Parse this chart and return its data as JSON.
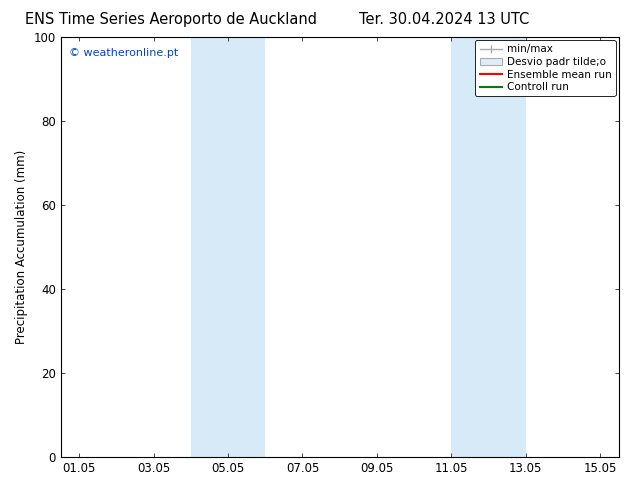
{
  "title": "ENS Time Series Aeroporto de Auckland",
  "title_right": "Ter. 30.04.2024 13 UTC",
  "ylabel": "Precipitation Accumulation (mm)",
  "watermark": "© weatheronline.pt",
  "watermark_color": "#0044cc",
  "ylim": [
    0,
    100
  ],
  "yticks": [
    0,
    20,
    40,
    60,
    80,
    100
  ],
  "xlim": [
    0.5,
    15.5
  ],
  "x_tick_labels": [
    "01.05",
    "03.05",
    "05.05",
    "07.05",
    "09.05",
    "11.05",
    "13.05",
    "15.05"
  ],
  "x_tick_positions": [
    1,
    3,
    5,
    7,
    9,
    11,
    13,
    15
  ],
  "shaded_bands": [
    {
      "x_start": 4.0,
      "x_end": 6.0,
      "color": "#d6eaf8"
    },
    {
      "x_start": 11.0,
      "x_end": 13.0,
      "color": "#d6eaf8"
    }
  ],
  "legend_entries": [
    {
      "label": "min/max",
      "type": "errorbar",
      "color": "#aaaaaa"
    },
    {
      "label": "Desvio padr tilde;o",
      "type": "patch",
      "color": "#ddeef8"
    },
    {
      "label": "Ensemble mean run",
      "type": "line",
      "color": "#ff0000",
      "linewidth": 1.5
    },
    {
      "label": "Controll run",
      "type": "line",
      "color": "#008000",
      "linewidth": 1.5
    }
  ],
  "background_color": "#ffffff",
  "title_fontsize": 10.5,
  "label_fontsize": 8.5,
  "tick_fontsize": 8.5,
  "legend_fontsize": 7.5
}
